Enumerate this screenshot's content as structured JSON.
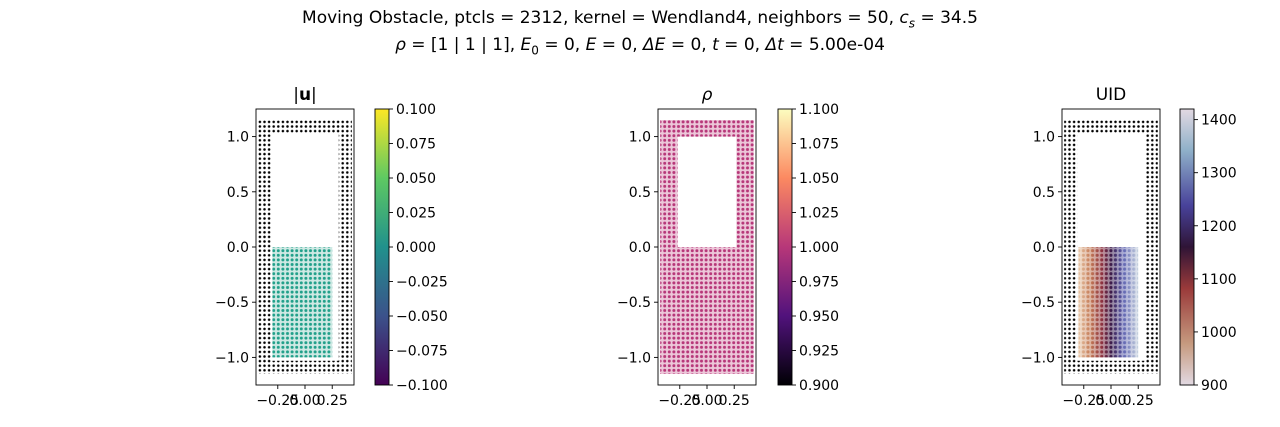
{
  "figure": {
    "title_line1_prefix": "Moving Obstacle, ptcls = 2312, kernel = Wendland4, neighbors = 50, ",
    "cs_symbol": "c",
    "cs_subscript": "s",
    "cs_value": " = 34.5",
    "title_line2": {
      "rho_symbol": "ρ",
      "rho_value": " = [1 | 1 | 1], ",
      "E0_symbol": "E",
      "E0_subscript": "0",
      "E0_value": " = 0, ",
      "E_symbol": "E",
      "E_value": " = 0, ",
      "dE_symbol": "ΔE",
      "dE_value": " = 0, ",
      "t_symbol": "t",
      "t_value": " = 0, ",
      "dt_symbol": "Δt",
      "dt_value": " = 5.00e-04"
    }
  },
  "colors": {
    "wall_particles": "#000000",
    "fluid_u": "#21a08a",
    "fluid_rho": "#b73779",
    "axes": "#000000"
  },
  "chart_data": [
    {
      "type": "scatter",
      "title": "|u|",
      "title_bold_part": "u",
      "xlim": [
        -0.45,
        0.45
      ],
      "ylim": [
        -1.25,
        1.25
      ],
      "xticks": [
        "−0.25",
        "0.00",
        "0.25"
      ],
      "xtick_values": [
        -0.25,
        0.0,
        0.25
      ],
      "yticks": [
        "−1.0",
        "−0.5",
        "0.0",
        "0.5",
        "1.0"
      ],
      "ytick_values": [
        -1.0,
        -0.5,
        0.0,
        0.5,
        1.0
      ],
      "walls": {
        "outer_x": [
          -0.43,
          0.43
        ],
        "outer_y": [
          -1.15,
          1.15
        ],
        "thickness": 0.12,
        "color_key": "wall_particles"
      },
      "fluid": {
        "x": [
          -0.3,
          0.25
        ],
        "y": [
          -1.0,
          0.0
        ],
        "color": "#21a08a"
      },
      "colorbar": {
        "cmap": "viridis",
        "range": [
          -0.1,
          0.1
        ],
        "ticks": [
          "0.100",
          "0.075",
          "0.050",
          "0.025",
          "0.000",
          "−0.025",
          "−0.050",
          "−0.075",
          "−0.100"
        ],
        "tick_values": [
          0.1,
          0.075,
          0.05,
          0.025,
          0.0,
          -0.025,
          -0.05,
          -0.075,
          -0.1
        ]
      }
    },
    {
      "type": "scatter",
      "title": "ρ",
      "xlim": [
        -0.45,
        0.45
      ],
      "ylim": [
        -1.25,
        1.25
      ],
      "xticks": [
        "−0.25",
        "0.00",
        "0.25"
      ],
      "xtick_values": [
        -0.25,
        0.0,
        0.25
      ],
      "yticks": [
        "−1.0",
        "−0.5",
        "0.0",
        "0.5",
        "1.0"
      ],
      "ytick_values": [
        -1.0,
        -0.5,
        0.0,
        0.5,
        1.0
      ],
      "field": {
        "outer_x": [
          -0.43,
          0.43
        ],
        "outer_y": [
          -1.15,
          1.15
        ],
        "hole_x": [
          -0.27,
          0.27
        ],
        "hole_y": [
          0.0,
          1.0
        ],
        "color": "#b73779"
      },
      "colorbar": {
        "cmap": "magma",
        "range": [
          0.9,
          1.1
        ],
        "ticks": [
          "1.100",
          "1.075",
          "1.050",
          "1.025",
          "1.000",
          "0.975",
          "0.950",
          "0.925",
          "0.900"
        ],
        "tick_values": [
          1.1,
          1.075,
          1.05,
          1.025,
          1.0,
          0.975,
          0.95,
          0.925,
          0.9
        ]
      }
    },
    {
      "type": "scatter",
      "title": "UID",
      "xlim": [
        -0.45,
        0.45
      ],
      "ylim": [
        -1.25,
        1.25
      ],
      "xticks": [
        "−0.25",
        "0.00",
        "0.25"
      ],
      "xtick_values": [
        -0.25,
        0.0,
        0.25
      ],
      "yticks": [
        "−1.0",
        "−0.5",
        "0.0",
        "0.5",
        "1.0"
      ],
      "ytick_values": [
        -1.0,
        -0.5,
        0.0,
        0.5,
        1.0
      ],
      "walls": {
        "outer_x": [
          -0.43,
          0.43
        ],
        "outer_y": [
          -1.15,
          1.15
        ],
        "thickness": 0.12,
        "color_key": "wall_particles"
      },
      "fluid": {
        "x": [
          -0.3,
          0.25
        ],
        "y": [
          -1.0,
          0.0
        ],
        "uid_range": [
          900,
          1400
        ]
      },
      "colorbar": {
        "cmap": "twilight",
        "range": [
          900,
          1420
        ],
        "ticks": [
          "1400",
          "1300",
          "1200",
          "1100",
          "1000",
          "900"
        ],
        "tick_values": [
          1400,
          1300,
          1200,
          1100,
          1000,
          900
        ]
      }
    }
  ]
}
